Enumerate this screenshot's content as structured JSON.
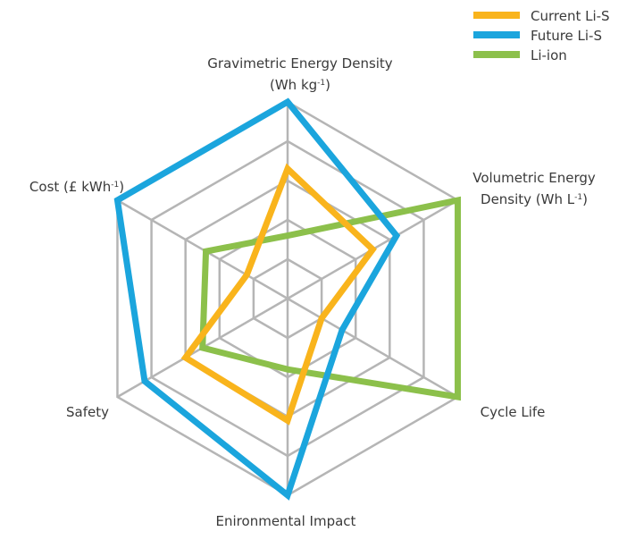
{
  "chart_data": {
    "type": "radar",
    "axes": [
      {
        "id": "gravimetric",
        "label_lines": [
          [
            "Gravimetric Energy Density"
          ],
          [
            "(Wh kg",
            {
              "sup": "-1"
            },
            ")"
          ]
        ]
      },
      {
        "id": "volumetric",
        "label_lines": [
          [
            "Volumetric Energy"
          ],
          [
            "Density (Wh L",
            {
              "sup": "-1"
            },
            ")"
          ]
        ]
      },
      {
        "id": "cycle_life",
        "label_lines": [
          [
            "Cycle Life"
          ]
        ]
      },
      {
        "id": "environmental",
        "label_lines": [
          [
            "Enironmental Impact"
          ]
        ]
      },
      {
        "id": "safety",
        "label_lines": [
          [
            "Safety"
          ]
        ]
      },
      {
        "id": "cost",
        "label_lines": [
          [
            "Cost (£ kWh",
            {
              "sup": "-1"
            },
            ")"
          ]
        ]
      }
    ],
    "rings": 5,
    "range": [
      0,
      5
    ],
    "series": [
      {
        "name": "Current Li-S",
        "color": "#f9b41c",
        "values": [
          3.3,
          2.5,
          1.0,
          3.1,
          3.0,
          1.2
        ]
      },
      {
        "name": "Future Li-S",
        "color": "#1ba5dd",
        "values": [
          5.0,
          3.2,
          1.6,
          5.0,
          4.2,
          5.0
        ]
      },
      {
        "name": "Li-ion",
        "color": "#8cc04b",
        "values": [
          1.6,
          5.0,
          5.0,
          1.8,
          2.5,
          2.4
        ]
      }
    ],
    "legend_position": "top-right",
    "grid": true
  }
}
